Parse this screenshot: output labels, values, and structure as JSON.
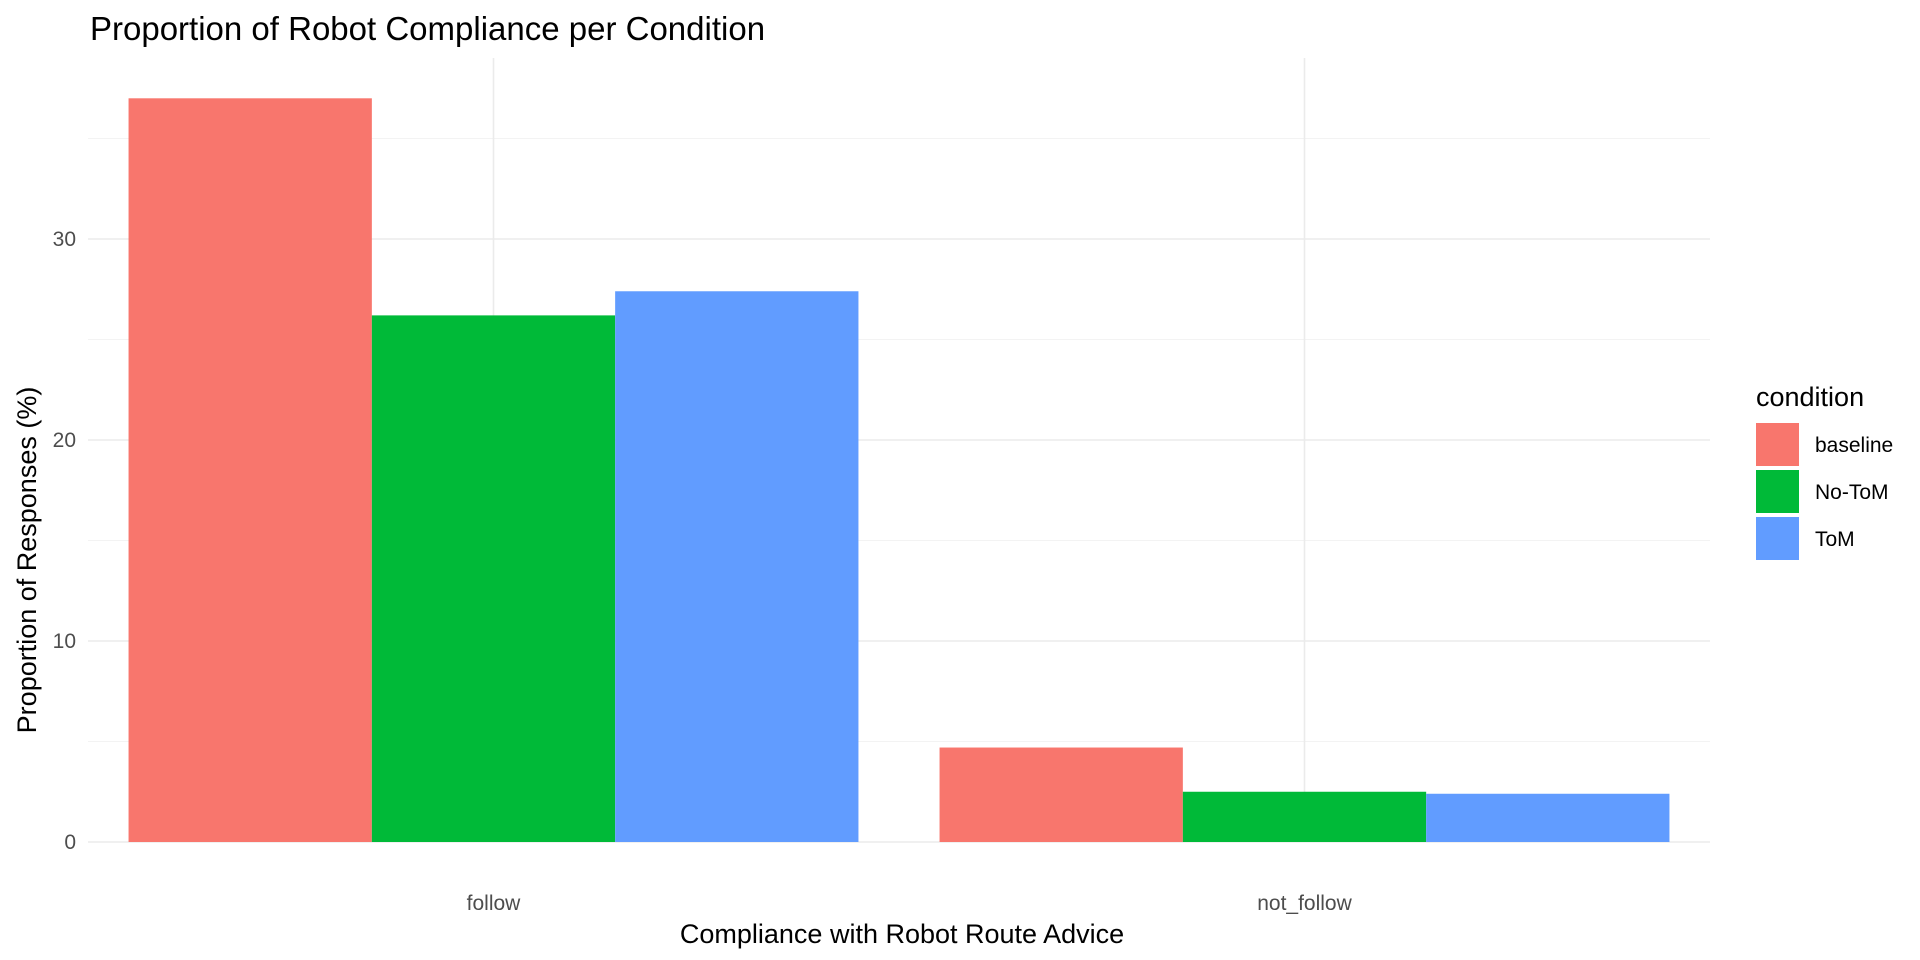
{
  "chart_data": {
    "type": "bar",
    "title": "Proportion of Robot Compliance per Condition",
    "xlabel": "Compliance with Robot Route Advice",
    "ylabel": "Proportion of Responses (%)",
    "categories": [
      "follow",
      "not_follow"
    ],
    "series": [
      {
        "name": "baseline",
        "color": "#F8766D",
        "values": [
          37.0,
          4.7
        ]
      },
      {
        "name": "No-ToM",
        "color": "#00BA38",
        "values": [
          26.2,
          2.5
        ]
      },
      {
        "name": "ToM",
        "color": "#619CFF",
        "values": [
          27.4,
          2.4
        ]
      }
    ],
    "ylim": [
      0,
      37.5
    ],
    "yticks": [
      0,
      10,
      20,
      30
    ],
    "grid": true,
    "legend": {
      "title": "condition",
      "position": "right"
    }
  }
}
